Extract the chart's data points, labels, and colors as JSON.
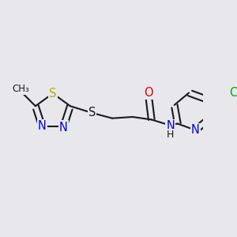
{
  "bg_color": "#e8e8ec",
  "bond_color": "#1a1a1a",
  "bond_width": 1.5,
  "colors": {
    "N": "#0000e0",
    "S_ring": "#b8a800",
    "S_thio": "#1a1a1a",
    "O": "#e00000",
    "Cl": "#00a000",
    "C": "#1a1a1a",
    "H": "#1a1a1a"
  },
  "figsize": [
    3.0,
    3.0
  ],
  "dpi": 100,
  "xlim": [
    0,
    300
  ],
  "ylim": [
    0,
    300
  ],
  "font_size": 10.5,
  "font_size_small": 8.5
}
